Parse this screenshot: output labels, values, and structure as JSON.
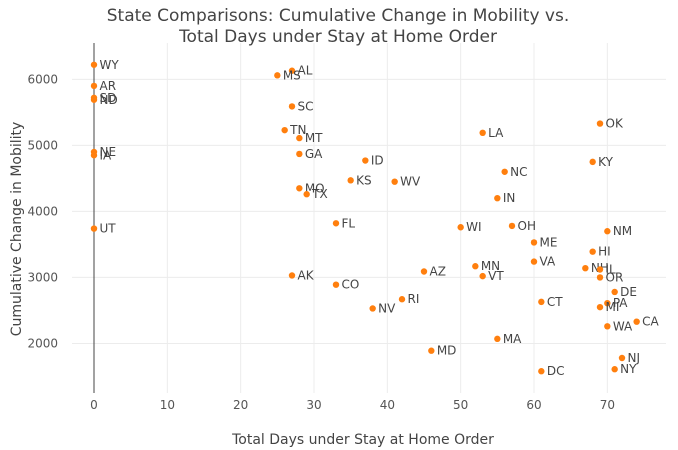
{
  "chart_data": {
    "type": "scatter",
    "title_lines": [
      "State Comparisons: Cumulative Change in Mobility vs.",
      "Total Days under Stay at Home Order"
    ],
    "xlabel": "Total Days under Stay at Home Order",
    "ylabel": "Cumulative Change in Mobility",
    "xlim": [
      -3,
      78
    ],
    "ylim": [
      1250,
      6550
    ],
    "x_ticks": [
      0,
      10,
      20,
      30,
      40,
      50,
      60,
      70
    ],
    "y_ticks": [
      2000,
      3000,
      4000,
      5000,
      6000
    ],
    "grid": true,
    "marker_color": "#ff7f0e",
    "points": [
      {
        "label": "WY",
        "x": 0,
        "y": 6220
      },
      {
        "label": "AR",
        "x": 0,
        "y": 5900
      },
      {
        "label": "SD",
        "x": 0,
        "y": 5720
      },
      {
        "label": "ND",
        "x": 0,
        "y": 5690
      },
      {
        "label": "NE",
        "x": 0,
        "y": 4900
      },
      {
        "label": "IA",
        "x": 0,
        "y": 4850
      },
      {
        "label": "UT",
        "x": 0,
        "y": 3740
      },
      {
        "label": "AL",
        "x": 27,
        "y": 6130
      },
      {
        "label": "MS",
        "x": 25,
        "y": 6060
      },
      {
        "label": "SC",
        "x": 27,
        "y": 5590
      },
      {
        "label": "TN",
        "x": 26,
        "y": 5230
      },
      {
        "label": "MT",
        "x": 28,
        "y": 5110
      },
      {
        "label": "GA",
        "x": 28,
        "y": 4870
      },
      {
        "label": "ID",
        "x": 37,
        "y": 4770
      },
      {
        "label": "KS",
        "x": 35,
        "y": 4470
      },
      {
        "label": "WV",
        "x": 41,
        "y": 4450
      },
      {
        "label": "MO",
        "x": 28,
        "y": 4350
      },
      {
        "label": "TX",
        "x": 29,
        "y": 4260
      },
      {
        "label": "FL",
        "x": 33,
        "y": 3820
      },
      {
        "label": "AK",
        "x": 27,
        "y": 3030
      },
      {
        "label": "CO",
        "x": 33,
        "y": 2890
      },
      {
        "label": "NV",
        "x": 38,
        "y": 2530
      },
      {
        "label": "RI",
        "x": 42,
        "y": 2670
      },
      {
        "label": "AZ",
        "x": 45,
        "y": 3090
      },
      {
        "label": "MD",
        "x": 46,
        "y": 1890
      },
      {
        "label": "WI",
        "x": 50,
        "y": 3760
      },
      {
        "label": "LA",
        "x": 53,
        "y": 5190
      },
      {
        "label": "NC",
        "x": 56,
        "y": 4600
      },
      {
        "label": "IN",
        "x": 55,
        "y": 4200
      },
      {
        "label": "OH",
        "x": 57,
        "y": 3780
      },
      {
        "label": "MN",
        "x": 52,
        "y": 3170
      },
      {
        "label": "VT",
        "x": 53,
        "y": 3020
      },
      {
        "label": "ME",
        "x": 60,
        "y": 3530
      },
      {
        "label": "VA",
        "x": 60,
        "y": 3240
      },
      {
        "label": "MA",
        "x": 55,
        "y": 2070
      },
      {
        "label": "CT",
        "x": 61,
        "y": 2630
      },
      {
        "label": "DC",
        "x": 61,
        "y": 1580
      },
      {
        "label": "OK",
        "x": 69,
        "y": 5330
      },
      {
        "label": "KY",
        "x": 68,
        "y": 4750
      },
      {
        "label": "NM",
        "x": 70,
        "y": 3700
      },
      {
        "label": "HI",
        "x": 68,
        "y": 3390
      },
      {
        "label": "NH",
        "x": 67,
        "y": 3140
      },
      {
        "label": "IL",
        "x": 69,
        "y": 3120
      },
      {
        "label": "OR",
        "x": 69,
        "y": 3000
      },
      {
        "label": "DE",
        "x": 71,
        "y": 2780
      },
      {
        "label": "PA",
        "x": 70,
        "y": 2610
      },
      {
        "label": "MI",
        "x": 69,
        "y": 2550
      },
      {
        "label": "CA",
        "x": 74,
        "y": 2330
      },
      {
        "label": "WA",
        "x": 70,
        "y": 2260
      },
      {
        "label": "NJ",
        "x": 72,
        "y": 1780
      },
      {
        "label": "NY",
        "x": 71,
        "y": 1610
      }
    ]
  }
}
